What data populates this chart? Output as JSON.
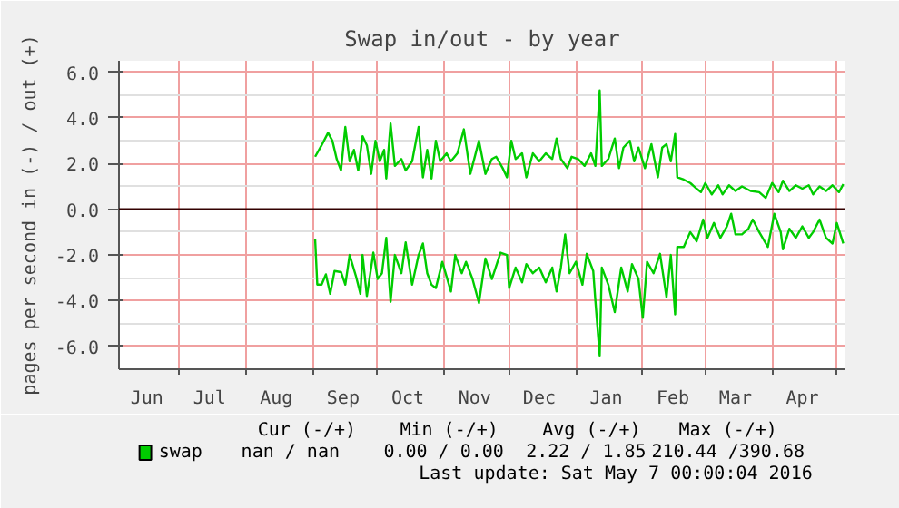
{
  "chart_data": {
    "type": "line",
    "title": "Swap in/out - by year",
    "ylabel": "pages per second in (-) / out (+)",
    "xlim": [
      "2015-06-03",
      "2016-05-05"
    ],
    "ylim": [
      -7,
      6.5
    ],
    "xticks": [
      {
        "value": "2015-06-16",
        "label": "Jun"
      },
      {
        "value": "2015-07-01",
        "label": null
      },
      {
        "value": "2015-07-15",
        "label": "Jul"
      },
      {
        "value": "2015-08-01",
        "label": null
      },
      {
        "value": "2015-08-15",
        "label": "Aug"
      },
      {
        "value": "2015-09-01",
        "label": null
      },
      {
        "value": "2015-09-15",
        "label": "Sep"
      },
      {
        "value": "2015-10-01",
        "label": null
      },
      {
        "value": "2015-10-15",
        "label": "Oct"
      },
      {
        "value": "2015-11-01",
        "label": null
      },
      {
        "value": "2015-11-15",
        "label": "Nov"
      },
      {
        "value": "2015-12-01",
        "label": null
      },
      {
        "value": "2015-12-15",
        "label": "Dec"
      },
      {
        "value": "2016-01-01",
        "label": null
      },
      {
        "value": "2016-01-15",
        "label": "Jan"
      },
      {
        "value": "2016-02-01",
        "label": null
      },
      {
        "value": "2016-02-15",
        "label": "Feb"
      },
      {
        "value": "2016-03-01",
        "label": null
      },
      {
        "value": "2016-03-15",
        "label": "Mar"
      },
      {
        "value": "2016-04-01",
        "label": null
      },
      {
        "value": "2016-04-15",
        "label": "Apr"
      },
      {
        "value": "2016-05-01",
        "label": null
      }
    ],
    "yticks": [
      {
        "value": 6,
        "label": "6.0"
      },
      {
        "value": 5,
        "label": null
      },
      {
        "value": 4,
        "label": "4.0"
      },
      {
        "value": 3,
        "label": null
      },
      {
        "value": 2,
        "label": "2.0"
      },
      {
        "value": 1,
        "label": null
      },
      {
        "value": 0,
        "label": "0.0"
      },
      {
        "value": -1,
        "label": null
      },
      {
        "value": -2,
        "label": "-2.0"
      },
      {
        "value": -3,
        "label": null
      },
      {
        "value": -4,
        "label": "-4.0"
      },
      {
        "value": -5,
        "label": null
      },
      {
        "value": -6,
        "label": "-6.0"
      }
    ],
    "grid": true,
    "legend": "bottom left",
    "marker": "none",
    "line_style": "solid",
    "ref_lines": [
      {
        "axis": "y",
        "value": 0,
        "color": "#330000"
      }
    ],
    "annotations": [
      "Cur (-/+)",
      "Min (-/+)",
      "Avg (-/+)",
      "Max (-/+)",
      "nan /    nan",
      "0.00 /  0.00",
      "2.22 /  1.85",
      "210.44 /390.68",
      "Last update: Sat May  7 00:00:04 2016"
    ],
    "series": [
      {
        "name": "swap",
        "color": "#00cc00",
        "x": [
          "2015-09-02",
          "2015-09-05",
          "2015-09-08",
          "2015-09-10",
          "2015-09-12",
          "2015-09-14",
          "2015-09-16",
          "2015-09-18",
          "2015-09-20",
          "2015-09-22",
          "2015-09-24",
          "2015-09-26",
          "2015-09-28",
          "2015-09-30",
          "2015-10-02",
          "2015-10-04",
          "2015-10-05",
          "2015-10-07",
          "2015-10-09",
          "2015-10-12",
          "2015-10-14",
          "2015-10-17",
          "2015-10-20",
          "2015-10-22",
          "2015-10-24",
          "2015-10-26",
          "2015-10-28",
          "2015-10-30",
          "2015-11-02",
          "2015-11-04",
          "2015-11-07",
          "2015-11-10",
          "2015-11-13",
          "2015-11-17",
          "2015-11-20",
          "2015-11-23",
          "2015-11-25",
          "2015-11-28",
          "2015-11-30",
          "2015-12-02",
          "2015-12-04",
          "2015-12-07",
          "2015-12-09",
          "2015-12-12",
          "2015-12-15",
          "2015-12-18",
          "2015-12-21",
          "2015-12-23",
          "2015-12-25",
          "2015-12-28",
          "2015-12-30",
          "2016-01-02",
          "2016-01-05",
          "2016-01-08",
          "2016-01-10",
          "2016-01-12",
          "2016-01-13",
          "2016-01-16",
          "2016-01-19",
          "2016-01-21",
          "2016-01-23",
          "2016-01-26",
          "2016-01-28",
          "2016-01-30",
          "2016-02-02",
          "2016-02-05",
          "2016-02-08",
          "2016-02-10",
          "2016-02-12",
          "2016-02-14",
          "2016-02-16",
          "2016-02-17",
          "2016-02-20",
          "2016-02-23",
          "2016-02-26",
          "2016-02-28",
          "2016-03-01",
          "2016-03-04",
          "2016-03-07",
          "2016-03-09",
          "2016-03-12",
          "2016-03-15",
          "2016-03-18",
          "2016-03-22",
          "2016-03-26",
          "2016-03-29",
          "2016-04-01",
          "2016-04-04",
          "2016-04-06",
          "2016-04-09",
          "2016-04-12",
          "2016-04-15",
          "2016-04-18",
          "2016-04-20",
          "2016-04-23",
          "2016-04-26",
          "2016-04-29",
          "2016-05-02",
          "2016-05-04"
        ],
        "values": [
          2.3,
          2.8,
          3.35,
          3.0,
          2.2,
          1.7,
          3.6,
          2.1,
          2.6,
          1.7,
          3.2,
          2.8,
          1.55,
          3.0,
          2.1,
          2.6,
          1.35,
          3.75,
          1.9,
          2.2,
          1.7,
          2.1,
          3.6,
          1.4,
          2.6,
          1.35,
          3.0,
          2.1,
          2.45,
          2.1,
          2.45,
          3.5,
          1.55,
          3.0,
          1.55,
          2.2,
          2.3,
          1.8,
          1.4,
          3.0,
          2.2,
          2.45,
          1.4,
          2.45,
          2.1,
          2.45,
          2.2,
          3.1,
          2.2,
          1.8,
          2.3,
          2.2,
          1.9,
          2.45,
          1.9,
          5.2,
          1.9,
          2.2,
          3.1,
          1.8,
          2.7,
          3.0,
          2.1,
          2.7,
          1.8,
          2.85,
          1.4,
          2.7,
          2.85,
          2.1,
          3.3,
          1.4,
          1.3,
          1.15,
          0.9,
          0.75,
          1.15,
          0.65,
          1.05,
          0.65,
          1.05,
          0.8,
          1.0,
          0.8,
          0.75,
          0.5,
          1.15,
          0.75,
          1.25,
          0.8,
          1.05,
          0.9,
          1.05,
          0.65,
          1.0,
          0.8,
          1.05,
          0.75,
          1.1
        ]
      },
      {
        "color": "#00cc00",
        "x": [
          "2015-09-02",
          "2015-09-03",
          "2015-09-05",
          "2015-09-07",
          "2015-09-09",
          "2015-09-11",
          "2015-09-14",
          "2015-09-16",
          "2015-09-18",
          "2015-09-21",
          "2015-09-23",
          "2015-09-24",
          "2015-09-26",
          "2015-09-28",
          "2015-09-29",
          "2015-10-01",
          "2015-10-03",
          "2015-10-05",
          "2015-10-07",
          "2015-10-09",
          "2015-10-12",
          "2015-10-14",
          "2015-10-17",
          "2015-10-20",
          "2015-10-22",
          "2015-10-24",
          "2015-10-26",
          "2015-10-28",
          "2015-10-31",
          "2015-11-04",
          "2015-11-06",
          "2015-11-09",
          "2015-11-11",
          "2015-11-14",
          "2015-11-17",
          "2015-11-20",
          "2015-11-23",
          "2015-11-27",
          "2015-11-30",
          "2015-12-01",
          "2015-12-04",
          "2015-12-07",
          "2015-12-09",
          "2015-12-12",
          "2015-12-15",
          "2015-12-18",
          "2015-12-21",
          "2015-12-23",
          "2015-12-25",
          "2015-12-27",
          "2015-12-29",
          "2016-01-01",
          "2016-01-04",
          "2016-01-06",
          "2016-01-09",
          "2016-01-10",
          "2016-01-12",
          "2016-01-13",
          "2016-01-16",
          "2016-01-19",
          "2016-01-22",
          "2016-01-25",
          "2016-01-27",
          "2016-01-30",
          "2016-02-01",
          "2016-02-03",
          "2016-02-06",
          "2016-02-09",
          "2016-02-12",
          "2016-02-14",
          "2016-02-16",
          "2016-02-17",
          "2016-02-20",
          "2016-02-23",
          "2016-02-26",
          "2016-02-29",
          "2016-03-02",
          "2016-03-05",
          "2016-03-08",
          "2016-03-11",
          "2016-03-13",
          "2016-03-15",
          "2016-03-18",
          "2016-03-21",
          "2016-03-23",
          "2016-03-26",
          "2016-03-30",
          "2016-04-02",
          "2016-04-05",
          "2016-04-06",
          "2016-04-09",
          "2016-04-12",
          "2016-04-15",
          "2016-04-18",
          "2016-04-20",
          "2016-04-23",
          "2016-04-26",
          "2016-04-29",
          "2016-05-01",
          "2016-05-04"
        ],
        "values": [
          -1.3,
          -3.3,
          -3.3,
          -2.85,
          -3.7,
          -2.7,
          -2.75,
          -3.3,
          -2.0,
          -2.95,
          -3.7,
          -2.0,
          -3.8,
          -2.55,
          -1.9,
          -3.05,
          -2.8,
          -1.25,
          -4.05,
          -2.0,
          -2.8,
          -1.45,
          -3.3,
          -2.0,
          -1.5,
          -2.8,
          -3.3,
          -3.45,
          -2.3,
          -3.6,
          -2.0,
          -2.8,
          -2.3,
          -3.05,
          -4.1,
          -2.15,
          -3.05,
          -1.9,
          -2.0,
          -3.45,
          -2.55,
          -3.2,
          -2.4,
          -2.8,
          -2.55,
          -3.2,
          -2.55,
          -3.6,
          -2.55,
          -1.1,
          -2.8,
          -2.3,
          -3.3,
          -1.95,
          -2.7,
          -4.0,
          -6.4,
          -2.55,
          -3.3,
          -4.5,
          -2.55,
          -3.6,
          -2.4,
          -3.05,
          -4.75,
          -2.3,
          -2.8,
          -1.95,
          -3.85,
          -2.0,
          -4.6,
          -1.65,
          -1.65,
          -1.0,
          -1.4,
          -0.45,
          -1.25,
          -0.6,
          -1.25,
          -0.75,
          -0.2,
          -1.1,
          -1.1,
          -0.85,
          -0.45,
          -1.0,
          -1.65,
          -0.2,
          -1.0,
          -1.75,
          -0.85,
          -1.25,
          -0.75,
          -1.25,
          -1.0,
          -0.45,
          -1.25,
          -1.5,
          -0.6,
          -1.5
        ]
      }
    ]
  }
}
